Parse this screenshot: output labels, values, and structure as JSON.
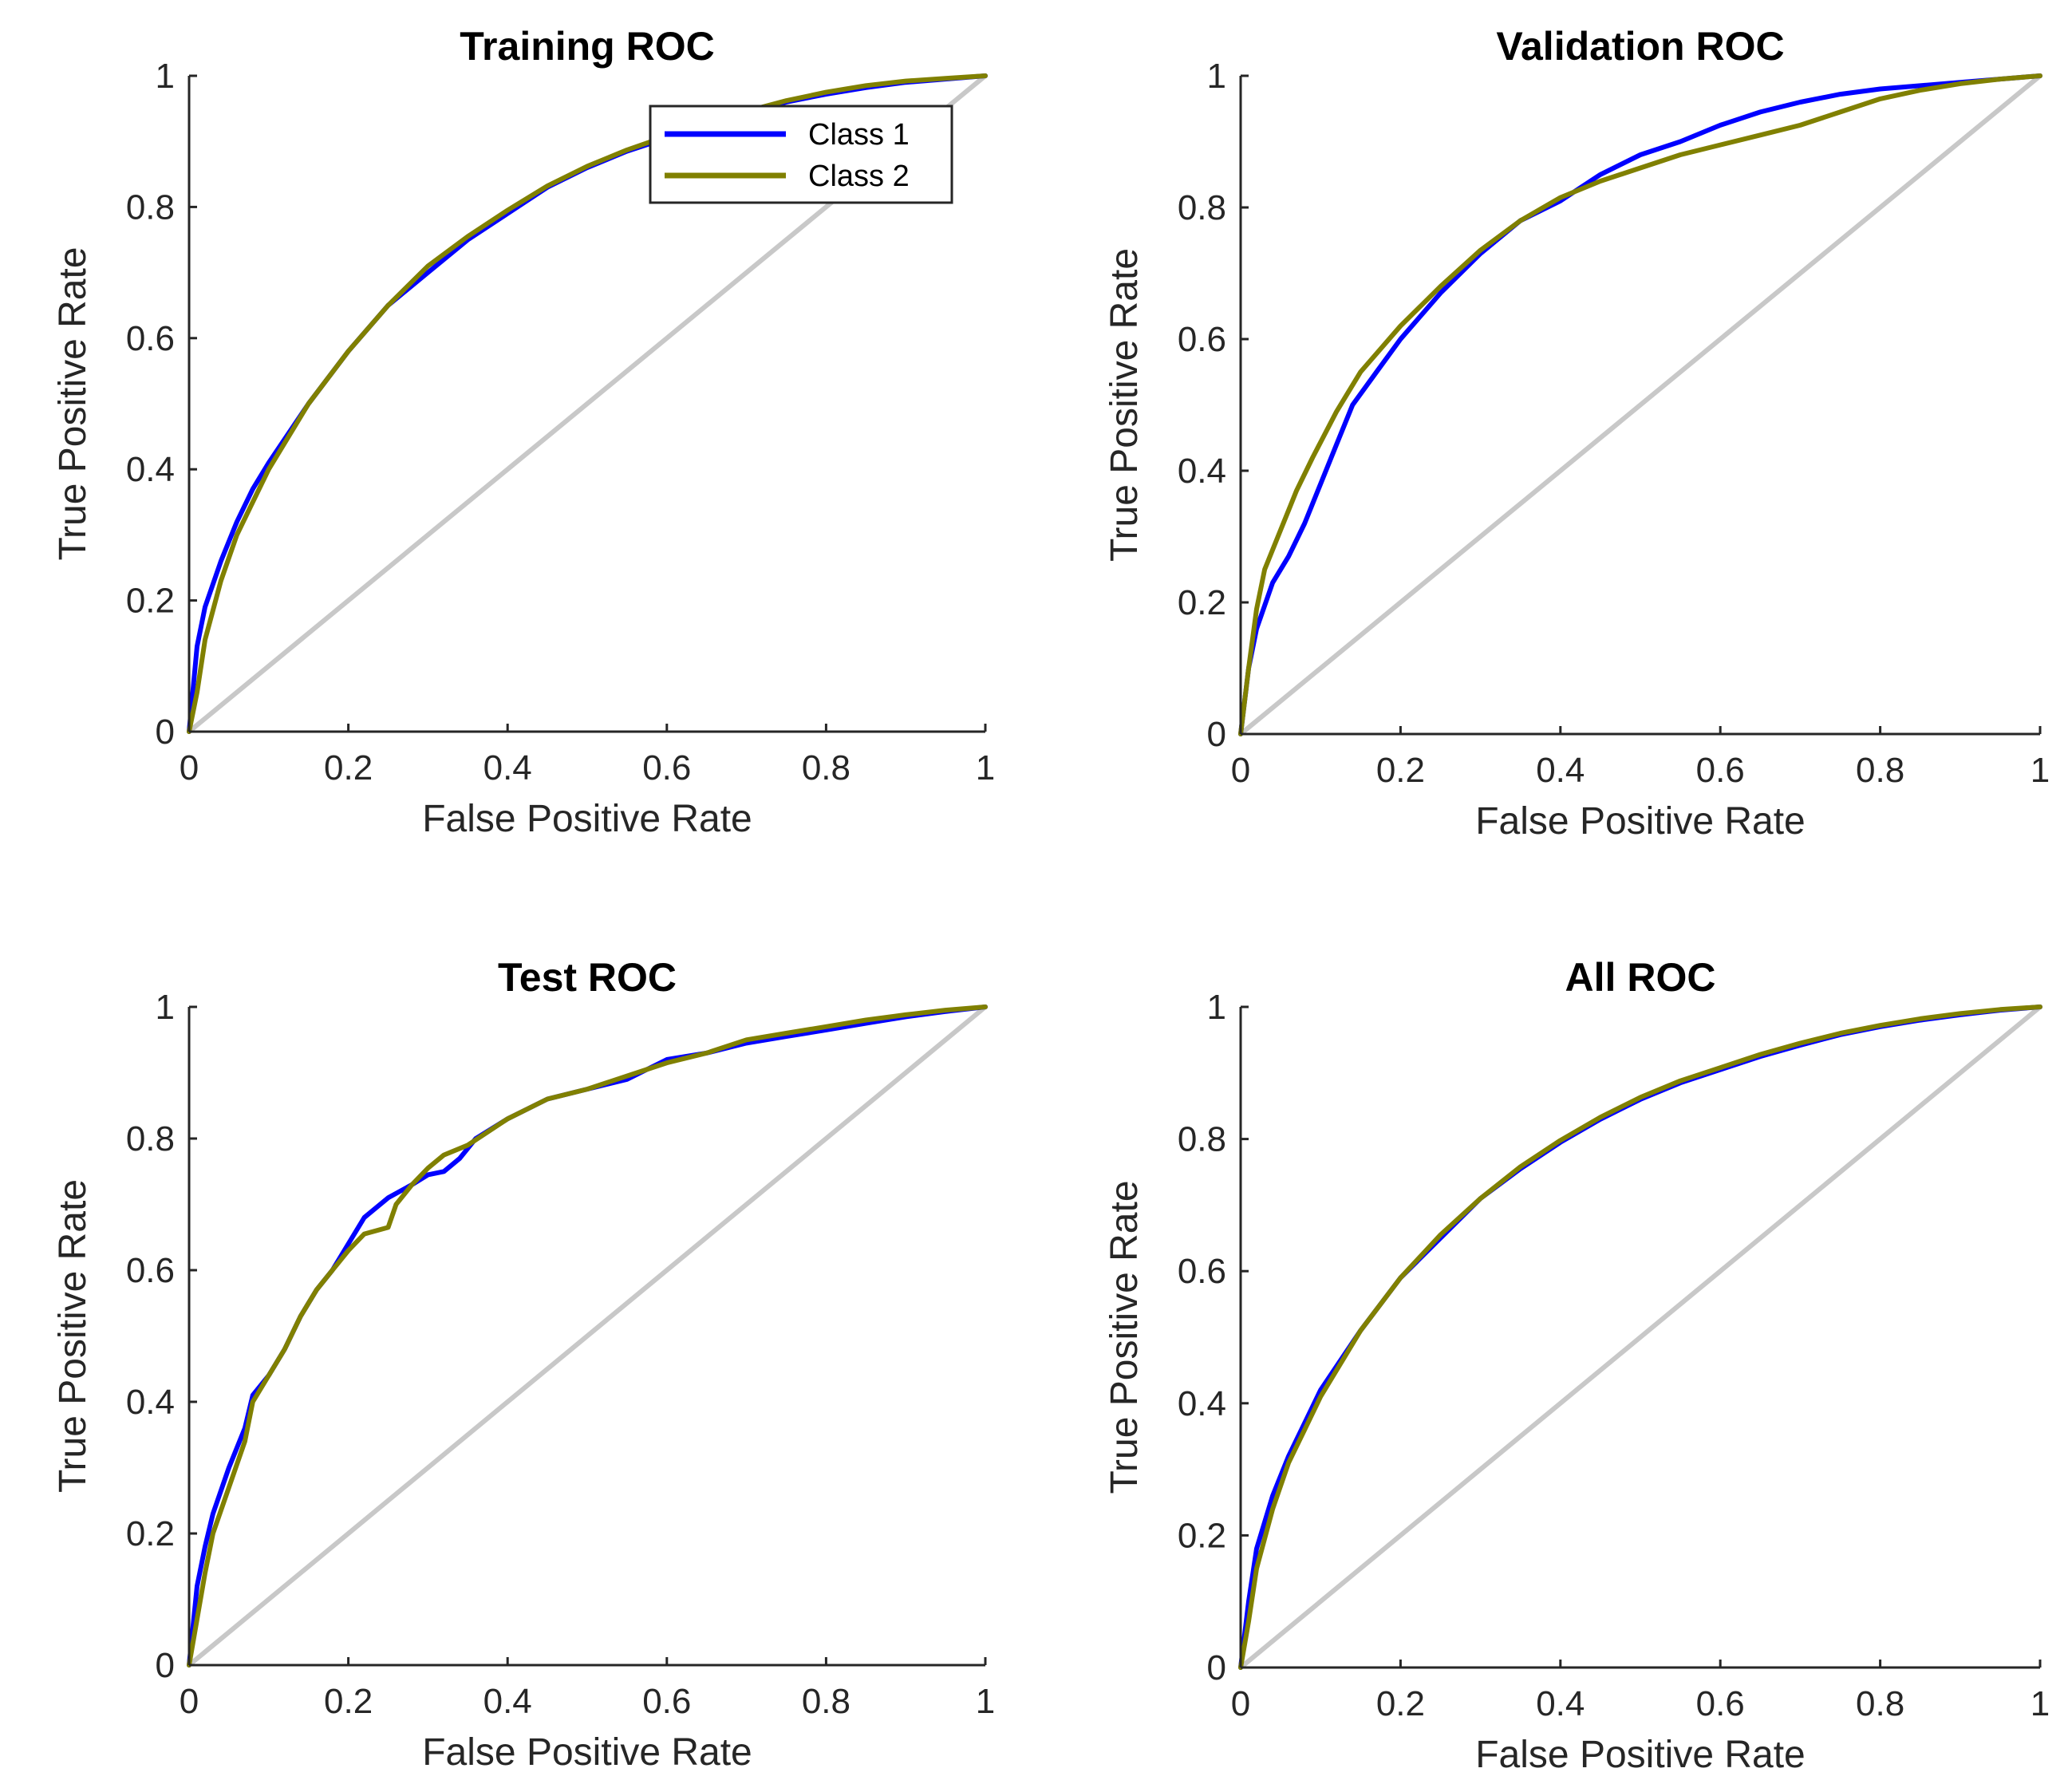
{
  "chart_data": [
    {
      "type": "line",
      "title": "Training ROC",
      "xlabel": "False Positive Rate",
      "ylabel": "True Positive Rate",
      "xlim": [
        0,
        1
      ],
      "ylim": [
        0,
        1
      ],
      "xticks": [
        "0",
        "0.2",
        "0.4",
        "0.6",
        "0.8",
        "1"
      ],
      "yticks": [
        "0",
        "0.2",
        "0.4",
        "0.6",
        "0.8",
        "1"
      ],
      "legend": {
        "position": "top-right",
        "entries": [
          "Class 1",
          "Class 2"
        ]
      },
      "series": [
        {
          "name": "Class 1",
          "color": "#0000ff",
          "x": [
            0,
            0.01,
            0.02,
            0.04,
            0.06,
            0.08,
            0.1,
            0.15,
            0.2,
            0.25,
            0.3,
            0.35,
            0.4,
            0.45,
            0.5,
            0.55,
            0.6,
            0.65,
            0.7,
            0.75,
            0.8,
            0.85,
            0.9,
            0.95,
            1
          ],
          "y": [
            0,
            0.13,
            0.19,
            0.26,
            0.32,
            0.37,
            0.41,
            0.5,
            0.58,
            0.65,
            0.7,
            0.75,
            0.79,
            0.83,
            0.86,
            0.885,
            0.905,
            0.925,
            0.945,
            0.96,
            0.972,
            0.982,
            0.99,
            0.995,
            1
          ]
        },
        {
          "name": "Class 2",
          "color": "#808000",
          "x": [
            0,
            0.01,
            0.02,
            0.04,
            0.06,
            0.08,
            0.1,
            0.15,
            0.2,
            0.25,
            0.3,
            0.35,
            0.4,
            0.45,
            0.5,
            0.55,
            0.6,
            0.65,
            0.7,
            0.75,
            0.8,
            0.85,
            0.9,
            0.95,
            1
          ],
          "y": [
            0,
            0.06,
            0.14,
            0.23,
            0.3,
            0.35,
            0.4,
            0.5,
            0.58,
            0.65,
            0.71,
            0.755,
            0.795,
            0.832,
            0.862,
            0.887,
            0.908,
            0.928,
            0.946,
            0.962,
            0.975,
            0.985,
            0.992,
            0.996,
            1
          ]
        },
        {
          "name": "Chance",
          "color": "#c8c8c8",
          "x": [
            0,
            1
          ],
          "y": [
            0,
            1
          ]
        }
      ]
    },
    {
      "type": "line",
      "title": "Validation ROC",
      "xlabel": "False Positive Rate",
      "ylabel": "True Positive Rate",
      "xlim": [
        0,
        1
      ],
      "ylim": [
        0,
        1
      ],
      "xticks": [
        "0",
        "0.2",
        "0.4",
        "0.6",
        "0.8",
        "1"
      ],
      "yticks": [
        "0",
        "0.2",
        "0.4",
        "0.6",
        "0.8",
        "1"
      ],
      "series": [
        {
          "name": "Class 1",
          "color": "#0000ff",
          "x": [
            0,
            0.01,
            0.02,
            0.04,
            0.06,
            0.08,
            0.1,
            0.12,
            0.14,
            0.17,
            0.2,
            0.25,
            0.3,
            0.35,
            0.4,
            0.45,
            0.5,
            0.55,
            0.6,
            0.65,
            0.7,
            0.75,
            0.8,
            0.85,
            0.9,
            0.95,
            1
          ],
          "y": [
            0,
            0.1,
            0.16,
            0.23,
            0.27,
            0.32,
            0.38,
            0.44,
            0.5,
            0.55,
            0.6,
            0.67,
            0.73,
            0.78,
            0.81,
            0.85,
            0.88,
            0.9,
            0.925,
            0.945,
            0.96,
            0.972,
            0.98,
            0.985,
            0.99,
            0.995,
            1
          ]
        },
        {
          "name": "Class 2",
          "color": "#808000",
          "x": [
            0,
            0.01,
            0.02,
            0.03,
            0.05,
            0.07,
            0.09,
            0.12,
            0.15,
            0.2,
            0.25,
            0.3,
            0.35,
            0.4,
            0.45,
            0.5,
            0.55,
            0.6,
            0.65,
            0.7,
            0.75,
            0.8,
            0.85,
            0.9,
            0.95,
            1
          ],
          "y": [
            0,
            0.1,
            0.19,
            0.25,
            0.31,
            0.37,
            0.42,
            0.49,
            0.55,
            0.62,
            0.68,
            0.735,
            0.78,
            0.815,
            0.84,
            0.86,
            0.88,
            0.895,
            0.91,
            0.925,
            0.945,
            0.965,
            0.978,
            0.988,
            0.995,
            1
          ]
        },
        {
          "name": "Chance",
          "color": "#c8c8c8",
          "x": [
            0,
            1
          ],
          "y": [
            0,
            1
          ]
        }
      ]
    },
    {
      "type": "line",
      "title": "Test ROC",
      "xlabel": "False Positive Rate",
      "ylabel": "True Positive Rate",
      "xlim": [
        0,
        1
      ],
      "ylim": [
        0,
        1
      ],
      "xticks": [
        "0",
        "0.2",
        "0.4",
        "0.6",
        "0.8",
        "1"
      ],
      "yticks": [
        "0",
        "0.2",
        "0.4",
        "0.6",
        "0.8",
        "1"
      ],
      "series": [
        {
          "name": "Class 1",
          "color": "#0000ff",
          "x": [
            0,
            0.01,
            0.02,
            0.03,
            0.05,
            0.07,
            0.08,
            0.1,
            0.12,
            0.14,
            0.16,
            0.18,
            0.2,
            0.22,
            0.25,
            0.28,
            0.3,
            0.32,
            0.34,
            0.36,
            0.4,
            0.45,
            0.5,
            0.55,
            0.6,
            0.65,
            0.7,
            0.75,
            0.8,
            0.85,
            0.9,
            0.95,
            1
          ],
          "y": [
            0,
            0.12,
            0.18,
            0.23,
            0.3,
            0.36,
            0.41,
            0.44,
            0.48,
            0.53,
            0.57,
            0.6,
            0.64,
            0.68,
            0.71,
            0.73,
            0.745,
            0.75,
            0.77,
            0.8,
            0.83,
            0.86,
            0.875,
            0.89,
            0.92,
            0.93,
            0.945,
            0.955,
            0.965,
            0.975,
            0.985,
            0.993,
            1
          ]
        },
        {
          "name": "Class 2",
          "color": "#808000",
          "x": [
            0,
            0.01,
            0.02,
            0.03,
            0.05,
            0.07,
            0.08,
            0.1,
            0.12,
            0.14,
            0.16,
            0.18,
            0.2,
            0.22,
            0.25,
            0.26,
            0.28,
            0.3,
            0.32,
            0.35,
            0.4,
            0.45,
            0.5,
            0.55,
            0.6,
            0.65,
            0.7,
            0.75,
            0.8,
            0.85,
            0.9,
            0.95,
            1
          ],
          "y": [
            0,
            0.07,
            0.14,
            0.2,
            0.27,
            0.34,
            0.4,
            0.44,
            0.48,
            0.53,
            0.57,
            0.6,
            0.63,
            0.655,
            0.665,
            0.7,
            0.73,
            0.755,
            0.775,
            0.79,
            0.83,
            0.86,
            0.875,
            0.895,
            0.915,
            0.93,
            0.95,
            0.96,
            0.97,
            0.98,
            0.988,
            0.995,
            1
          ]
        },
        {
          "name": "Chance",
          "color": "#c8c8c8",
          "x": [
            0,
            1
          ],
          "y": [
            0,
            1
          ]
        }
      ]
    },
    {
      "type": "line",
      "title": "All ROC",
      "xlabel": "False Positive Rate",
      "ylabel": "True Positive Rate",
      "xlim": [
        0,
        1
      ],
      "ylim": [
        0,
        1
      ],
      "xticks": [
        "0",
        "0.2",
        "0.4",
        "0.6",
        "0.8",
        "1"
      ],
      "yticks": [
        "0",
        "0.2",
        "0.4",
        "0.6",
        "0.8",
        "1"
      ],
      "series": [
        {
          "name": "Class 1",
          "color": "#0000ff",
          "x": [
            0,
            0.01,
            0.02,
            0.04,
            0.06,
            0.08,
            0.1,
            0.15,
            0.2,
            0.25,
            0.3,
            0.35,
            0.4,
            0.45,
            0.5,
            0.55,
            0.6,
            0.65,
            0.7,
            0.75,
            0.8,
            0.85,
            0.9,
            0.95,
            1
          ],
          "y": [
            0,
            0.1,
            0.18,
            0.26,
            0.32,
            0.37,
            0.42,
            0.51,
            0.59,
            0.65,
            0.71,
            0.755,
            0.795,
            0.83,
            0.86,
            0.885,
            0.905,
            0.925,
            0.942,
            0.958,
            0.97,
            0.98,
            0.988,
            0.995,
            1
          ]
        },
        {
          "name": "Class 2",
          "color": "#808000",
          "x": [
            0,
            0.01,
            0.02,
            0.04,
            0.06,
            0.08,
            0.1,
            0.15,
            0.2,
            0.25,
            0.3,
            0.35,
            0.4,
            0.45,
            0.5,
            0.55,
            0.6,
            0.65,
            0.7,
            0.75,
            0.8,
            0.85,
            0.9,
            0.95,
            1
          ],
          "y": [
            0,
            0.07,
            0.15,
            0.24,
            0.31,
            0.36,
            0.41,
            0.51,
            0.59,
            0.655,
            0.71,
            0.758,
            0.798,
            0.833,
            0.863,
            0.888,
            0.908,
            0.928,
            0.945,
            0.96,
            0.972,
            0.982,
            0.99,
            0.996,
            1
          ]
        },
        {
          "name": "Chance",
          "color": "#c8c8c8",
          "x": [
            0,
            1
          ],
          "y": [
            0,
            1
          ]
        }
      ]
    }
  ]
}
